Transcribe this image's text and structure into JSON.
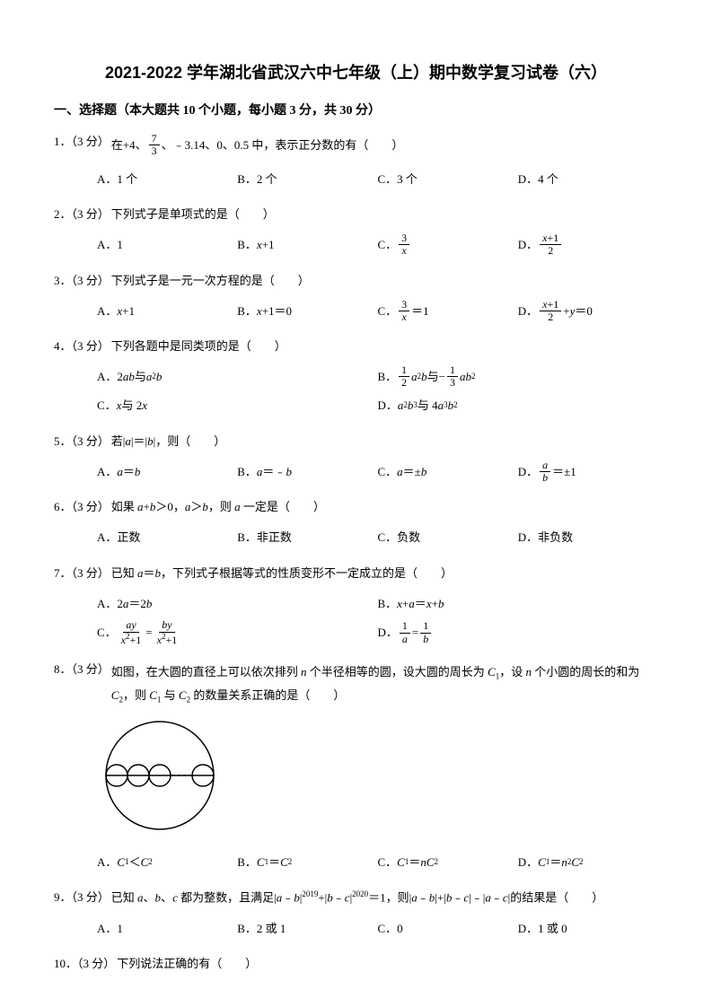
{
  "title": "2021-2022 学年湖北省武汉六中七年级（上）期中数学复习试卷（六）",
  "section1_title": "一、选择题（本大题共 10 个小题，每小题 3 分，共 30 分）",
  "q1": {
    "num": "1．（3 分）",
    "text_before": "在+4、",
    "frac_num": "7",
    "frac_den": "3",
    "text_after": "、﹣3.14、0、0.5 中，表示正分数的有（　　）",
    "A": "A．1 个",
    "B": "B．2 个",
    "C": "C．3 个",
    "D": "D．4 个"
  },
  "q2": {
    "num": "2．（3 分）",
    "text": "下列式子是单项式的是（　　）",
    "A": "A．1",
    "B_pre": "B．",
    "B_var": "x",
    "B_post": "+1",
    "C_pre": "C．",
    "C_num": "3",
    "C_den": "x",
    "D_pre": "D．",
    "D_num_a": "x",
    "D_num_b": "+1",
    "D_den": "2"
  },
  "q3": {
    "num": "3．（3 分）",
    "text": "下列式子是一元一次方程的是（　　）",
    "A_pre": "A．",
    "A_var": "x",
    "A_post": "+1",
    "B_pre": "B．",
    "B_var": "x",
    "B_post": "+1＝0",
    "C_pre": "C．",
    "C_num": "3",
    "C_den": "x",
    "C_post": " ＝1",
    "D_pre": "D．",
    "D_num_a": "x",
    "D_num_b": "+1",
    "D_den": "2",
    "D_post_a": " +",
    "D_var": "y",
    "D_post_b": "＝0"
  },
  "q4": {
    "num": "4．（3 分）",
    "text": "下列各题中是同类项的是（　　）",
    "A_pre": "A．2",
    "A_v1": "ab",
    "A_mid": " 与 ",
    "A_v2": "a",
    "A_e1": "2",
    "A_v3": "b",
    "B_pre": "B．",
    "B_f1n": "1",
    "B_f1d": "2",
    "B_v1": "a",
    "B_e1": "2",
    "B_v2": "b",
    "B_mid": " 与−",
    "B_f2n": "1",
    "B_f2d": "3",
    "B_v3": "ab",
    "B_e2": "2",
    "C_pre": "C．",
    "C_v1": "x",
    "C_mid": " 与 2",
    "C_v2": "x",
    "D_pre": "D．",
    "D_v1": "a",
    "D_e1": "2",
    "D_v2": "b",
    "D_e2": "3",
    "D_mid": " 与 4",
    "D_v3": "a",
    "D_e3": "3",
    "D_v4": "b",
    "D_e4": "2"
  },
  "q5": {
    "num": "5．（3 分）",
    "text_pre": "若|",
    "text_v1": "a",
    "text_mid": "|＝|",
    "text_v2": "b",
    "text_post": "|，则（　　）",
    "A_pre": "A．",
    "A_v1": "a",
    "A_mid": "＝",
    "A_v2": "b",
    "B_pre": "B．",
    "B_v1": "a",
    "B_mid": "＝﹣",
    "B_v2": "b",
    "C_pre": "C．",
    "C_v1": "a",
    "C_mid": "＝±",
    "C_v2": "b",
    "D_pre": "D．",
    "D_num": "a",
    "D_den": "b",
    "D_post": " ＝±1"
  },
  "q6": {
    "num": "6．（3 分）",
    "text_pre": "如果 ",
    "text_v1": "a",
    "text_mid1": "+",
    "text_v2": "b",
    "text_mid2": "＞0，",
    "text_v3": "a",
    "text_mid3": "＞",
    "text_v4": "b",
    "text_mid4": "，则 ",
    "text_v5": "a",
    "text_post": " 一定是（　　）",
    "A": "A．正数",
    "B": "B．非正数",
    "C": "C．负数",
    "D": "D．非负数"
  },
  "q7": {
    "num": "7．（3 分）",
    "text_pre": "已知 ",
    "text_v1": "a",
    "text_mid": "＝",
    "text_v2": "b",
    "text_post": "，下列式子根据等式的性质变形不一定成立的是（　　）",
    "A_pre": "A．2",
    "A_v1": "a",
    "A_mid": "＝2",
    "A_v2": "b",
    "B_pre": "B．",
    "B_v1": "x",
    "B_mid1": "+",
    "B_v2": "a",
    "B_mid2": "＝",
    "B_v3": "x",
    "B_mid3": "+",
    "B_v4": "b",
    "C_pre": "C．",
    "C_n1a": "ay",
    "C_d1a": "x",
    "C_d1e": "2",
    "C_d1b": "+1",
    "C_eq": " = ",
    "C_n2a": "by",
    "C_d2a": "x",
    "C_d2e": "2",
    "C_d2b": "+1",
    "D_pre": "D．",
    "D_n1": "1",
    "D_d1": "a",
    "D_eq": " = ",
    "D_n2": "1",
    "D_d2": "b"
  },
  "q8": {
    "num": "8．（3 分）",
    "text_pre": "如图，在大圆的直径上可以依次排列 ",
    "text_v1": "n",
    "text_mid1": " 个半径相等的圆，设大圆的周长为 ",
    "text_v2": "C",
    "text_s1": "1",
    "text_mid2": "，设 ",
    "text_v3": "n",
    "text_mid3": " 个小圆的周长的和为 ",
    "text_v4": "C",
    "text_s2": "2",
    "text_mid4": "，则 ",
    "text_v5": "C",
    "text_s3": "1",
    "text_mid5": " 与 ",
    "text_v6": "C",
    "text_s4": "2",
    "text_post": " 的数量关系正确的是（　　）",
    "A_pre": "A．",
    "A_v1": "C",
    "A_s1": "1",
    "A_mid": "＜",
    "A_v2": "C",
    "A_s2": "2",
    "B_pre": "B．",
    "B_v1": "C",
    "B_s1": "1",
    "B_mid": "＝",
    "B_v2": "C",
    "B_s2": "2",
    "C_pre": "C．",
    "C_v1": "C",
    "C_s1": "1",
    "C_mid": "＝",
    "C_v2": "nC",
    "C_s2": "2",
    "D_pre": "D．",
    "D_v1": "C",
    "D_s1": "1",
    "D_mid": "＝",
    "D_v2": "n",
    "D_e": "2",
    "D_v3": "C",
    "D_s2": "2"
  },
  "q9": {
    "num": "9．（3 分）",
    "text_pre": "已知 ",
    "text_v1": "a",
    "text_t1": "、",
    "text_v2": "b",
    "text_t2": "、",
    "text_v3": "c",
    "text_t3": " 都为整数，且满足|",
    "text_v4": "a",
    "text_t4": "﹣",
    "text_v5": "b",
    "text_t5": "|",
    "text_e1": "2019",
    "text_t6": "+|",
    "text_v6": "b",
    "text_t7": "﹣",
    "text_v7": "c",
    "text_t8": "|",
    "text_e2": "2020",
    "text_t9": "＝1，则|",
    "text_v8": "a",
    "text_t10": "﹣",
    "text_v9": "b",
    "text_t11": "|+|",
    "text_v10": "b",
    "text_t12": "﹣",
    "text_v11": "c",
    "text_t13": "|﹣|",
    "text_v12": "a",
    "text_t14": "﹣",
    "text_v13": "c",
    "text_post": "|的结果是（　　）",
    "A": "A．1",
    "B": "B．2 或 1",
    "C": "C．0",
    "D": "D．1 或 0"
  },
  "q10": {
    "num": "10．（3 分）",
    "text": "下列说法正确的有（　　）"
  },
  "diagram": {
    "big_r": 60,
    "small_r": 12,
    "stroke": "#000000",
    "stroke_width": 1.5
  }
}
